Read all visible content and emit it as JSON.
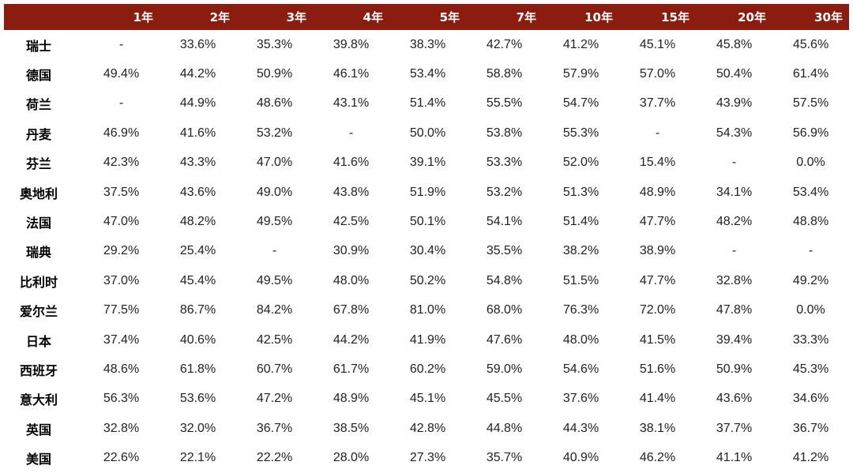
{
  "table": {
    "headers": [
      "",
      "1年",
      "2年",
      "3年",
      "4年",
      "5年",
      "7年",
      "10年",
      "15年",
      "20年",
      "30年"
    ],
    "rows": [
      {
        "country": "瑞士",
        "values": [
          "-",
          "33.6%",
          "35.3%",
          "39.8%",
          "38.3%",
          "42.7%",
          "41.2%",
          "45.1%",
          "45.8%",
          "45.6%"
        ]
      },
      {
        "country": "德国",
        "values": [
          "49.4%",
          "44.2%",
          "50.9%",
          "46.1%",
          "53.4%",
          "58.8%",
          "57.9%",
          "57.0%",
          "50.4%",
          "61.4%"
        ]
      },
      {
        "country": "荷兰",
        "values": [
          "-",
          "44.9%",
          "48.6%",
          "43.1%",
          "51.4%",
          "55.5%",
          "54.7%",
          "37.7%",
          "43.9%",
          "57.5%"
        ]
      },
      {
        "country": "丹麦",
        "values": [
          "46.9%",
          "41.6%",
          "53.2%",
          "-",
          "50.0%",
          "53.8%",
          "55.3%",
          "-",
          "54.3%",
          "56.9%"
        ]
      },
      {
        "country": "芬兰",
        "values": [
          "42.3%",
          "43.3%",
          "47.0%",
          "41.6%",
          "39.1%",
          "53.3%",
          "52.0%",
          "15.4%",
          "-",
          "0.0%"
        ]
      },
      {
        "country": "奥地利",
        "values": [
          "37.5%",
          "43.6%",
          "49.0%",
          "43.8%",
          "51.9%",
          "53.2%",
          "51.3%",
          "48.9%",
          "34.1%",
          "53.4%"
        ]
      },
      {
        "country": "法国",
        "values": [
          "47.0%",
          "48.2%",
          "49.5%",
          "42.5%",
          "50.1%",
          "54.1%",
          "51.4%",
          "47.7%",
          "48.2%",
          "48.8%"
        ]
      },
      {
        "country": "瑞典",
        "values": [
          "29.2%",
          "25.4%",
          "-",
          "30.9%",
          "30.4%",
          "35.5%",
          "38.2%",
          "38.9%",
          "-",
          "-"
        ]
      },
      {
        "country": "比利时",
        "values": [
          "37.0%",
          "45.4%",
          "49.5%",
          "48.0%",
          "50.2%",
          "54.8%",
          "51.5%",
          "47.7%",
          "32.8%",
          "49.2%"
        ]
      },
      {
        "country": "爱尔兰",
        "values": [
          "77.5%",
          "86.7%",
          "84.2%",
          "67.8%",
          "81.0%",
          "68.0%",
          "76.3%",
          "72.0%",
          "47.8%",
          "0.0%"
        ]
      },
      {
        "country": "日本",
        "values": [
          "37.4%",
          "40.6%",
          "42.5%",
          "44.2%",
          "41.9%",
          "47.6%",
          "48.0%",
          "41.5%",
          "39.4%",
          "33.3%"
        ]
      },
      {
        "country": "西班牙",
        "values": [
          "48.6%",
          "61.8%",
          "60.7%",
          "61.7%",
          "60.2%",
          "59.0%",
          "54.6%",
          "51.6%",
          "50.9%",
          "45.3%"
        ]
      },
      {
        "country": "意大利",
        "values": [
          "56.3%",
          "53.6%",
          "47.2%",
          "48.9%",
          "45.1%",
          "45.5%",
          "37.6%",
          "41.4%",
          "43.6%",
          "34.6%"
        ]
      },
      {
        "country": "英国",
        "values": [
          "32.8%",
          "32.0%",
          "36.7%",
          "38.5%",
          "42.8%",
          "44.8%",
          "44.3%",
          "38.1%",
          "37.7%",
          "36.7%"
        ]
      },
      {
        "country": "美国",
        "values": [
          "22.6%",
          "22.1%",
          "22.2%",
          "28.0%",
          "27.3%",
          "35.7%",
          "40.9%",
          "46.2%",
          "41.1%",
          "41.2%"
        ]
      }
    ]
  },
  "colors": {
    "header_background": "#8b1d10",
    "header_text": "#ffffff"
  }
}
